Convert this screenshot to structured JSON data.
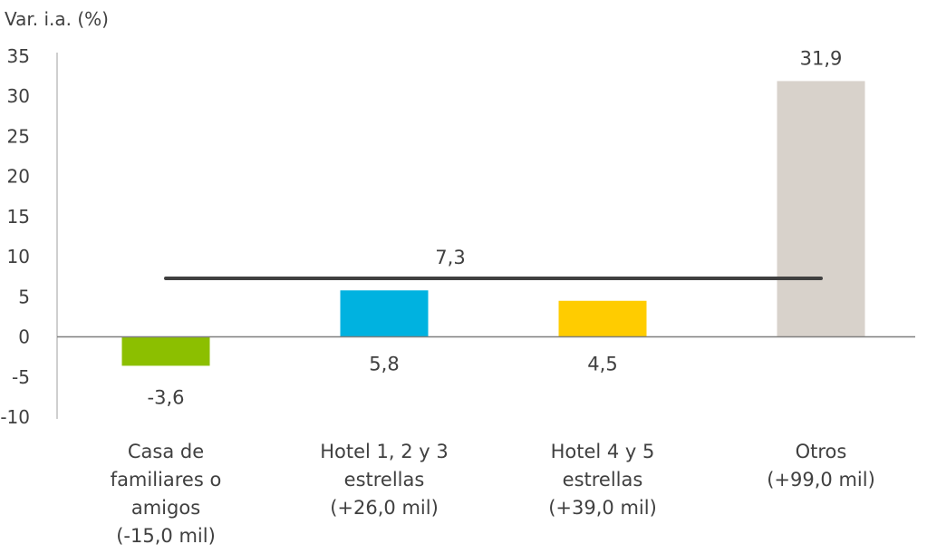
{
  "chart_data": {
    "type": "bar",
    "ylabel": "Var. i.a. (%)",
    "ylim": [
      -10,
      35
    ],
    "yticks": [
      35,
      30,
      25,
      20,
      15,
      10,
      5,
      0,
      -5,
      -10
    ],
    "grid": false,
    "categories": [
      [
        "Casa de",
        "familiares o",
        "amigos",
        "(-15,0 mil)"
      ],
      [
        "Hotel 1, 2 y 3",
        "estrellas",
        "(+26,0 mil)"
      ],
      [
        "Hotel 4 y 5",
        "estrellas",
        "(+39,0 mil)"
      ],
      [
        "Otros",
        "(+99,0 mil)"
      ]
    ],
    "values": [
      -3.6,
      5.8,
      4.5,
      31.9
    ],
    "value_labels": [
      "-3,6",
      "5,8",
      "4,5",
      "31,9"
    ],
    "colors": [
      "#8cbf00",
      "#00b2e0",
      "#ffcc00",
      "#d8d2cb"
    ],
    "reference_line": {
      "value": 7.3,
      "label": "7,3",
      "color": "#404040"
    }
  }
}
